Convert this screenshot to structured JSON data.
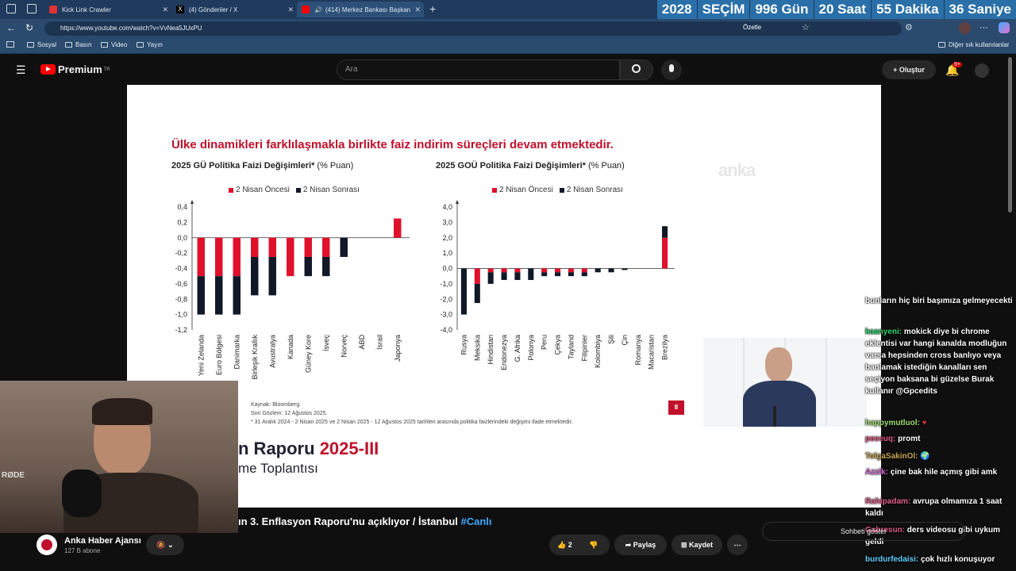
{
  "tabs": [
    {
      "label": "Kick Link Crawler",
      "color": "#d33"
    },
    {
      "label": "(4) Gönderiler / X",
      "color": "#000"
    },
    {
      "label": "(414) Merkez Bankası Başkan",
      "color": "#f00"
    }
  ],
  "countdown": [
    "2028",
    "SEÇİM",
    "996 Gün",
    "20 Saat",
    "55 Dakika",
    "36 Saniye"
  ],
  "url": "https://www.youtube.com/watch?v=VvNea5JUxPU",
  "ozetle": "Özetle",
  "bookmarks": [
    "Sosyal",
    "Basın",
    "Video",
    "Yayın"
  ],
  "other_bookmarks": "Diğer sık kullanılanlar",
  "yt": {
    "brand": "Premium",
    "brand_sup": "TR",
    "search_placeholder": "Ara",
    "create": "Oluştur",
    "notif_count": "9+"
  },
  "slide": {
    "title": "Ülke dinamikleri farklılaşmakla birlikte faiz indirim süreçleri devam etmektedir.",
    "chart1_title": "2025 GÜ Politika Faizi Değişimleri*",
    "chart1_unit": "(% Puan)",
    "chart2_title": "2025 GOÜ Politika Faizi Değişimleri*",
    "chart2_unit": "(% Puan)",
    "legend_before": "2 Nisan Öncesi",
    "legend_after": "2 Nisan Sonrası",
    "watermark": "anka",
    "source": "Kaynak: Bloomberg.",
    "observation": "Son Gözlem: 12 Ağustos 2025.",
    "footnote": "* 31 Aralık 2024 - 2 Nisan 2025 ve 2 Nisan 2025 - 12 Ağustos 2025 tarihleri arasında politika faizlerindeki değişimi ifade etmektedir.",
    "page_number": "8",
    "report_title_a": "n Raporu",
    "report_title_b": "2025-III",
    "report_sub": "me Toplantısı"
  },
  "colors": {
    "before": "#e0112b",
    "after": "#111827"
  },
  "chart_data": [
    {
      "type": "bar",
      "stacked": true,
      "title": "2025 GÜ Politika Faizi Değişimleri* (% Puan)",
      "categories": [
        "Yeni Zelanda",
        "Euro Bölgesi",
        "Danimarka",
        "Birleşik Krallık",
        "Avustralya",
        "Kanada",
        "Güney Kore",
        "İsveç",
        "Norveç",
        "ABD",
        "İsrail",
        "Japonya"
      ],
      "series": [
        {
          "name": "2 Nisan Öncesi",
          "values": [
            -0.5,
            -0.5,
            -0.5,
            -0.25,
            -0.25,
            -0.5,
            -0.25,
            -0.25,
            0,
            0,
            0,
            0.25
          ]
        },
        {
          "name": "2 Nisan Sonrası",
          "values": [
            -0.5,
            -0.5,
            -0.5,
            -0.5,
            -0.5,
            0,
            -0.25,
            -0.25,
            -0.25,
            0,
            0,
            0
          ]
        }
      ],
      "ylim": [
        -1.2,
        0.4
      ],
      "yticks": [
        "0,4",
        "0,2",
        "0,0",
        "-0,2",
        "-0,4",
        "-0,6",
        "-0,8",
        "-1,0",
        "-1,2"
      ]
    },
    {
      "type": "bar",
      "stacked": true,
      "title": "2025 GOÜ Politika Faizi Değişimleri* (% Puan)",
      "categories": [
        "Rusya",
        "Meksika",
        "Hindistan",
        "Endonezya",
        "G. Afrika",
        "Polonya",
        "Peru",
        "Çekya",
        "Tayland",
        "Filipinler",
        "Kolombiya",
        "Şili",
        "Çin",
        "Romanya",
        "Macaristan",
        "Brezilya"
      ],
      "series": [
        {
          "name": "2 Nisan Öncesi",
          "values": [
            0,
            -1.0,
            -0.25,
            -0.25,
            -0.25,
            0,
            -0.25,
            -0.25,
            -0.25,
            -0.25,
            0,
            0,
            0,
            0,
            0,
            2.0
          ]
        },
        {
          "name": "2 Nisan Sonrası",
          "values": [
            -3.0,
            -1.25,
            -0.75,
            -0.5,
            -0.5,
            -0.75,
            -0.25,
            -0.25,
            -0.25,
            -0.25,
            -0.25,
            -0.25,
            -0.1,
            0,
            0,
            0.75
          ]
        }
      ],
      "ylim": [
        -4.0,
        4.0
      ],
      "yticks": [
        "4,0",
        "3,0",
        "2,0",
        "1,0",
        "0,0",
        "-1,0",
        "-2,0",
        "-3,0",
        "-4,0"
      ]
    }
  ],
  "chat": [
    {
      "user": "",
      "text": "bunların hiç biri başımıza gelmeyecekti"
    },
    {
      "user": "kaanyeni:",
      "text": "mokick diye bi chrome eklentisi var hangi kanalda modluğun varsa hepsinden cross banlıyo veya banlamak istediğin kanalları sen seçiyon baksana bi güzelse Burak kullanır @Gpcedits"
    },
    {
      "user": "happymutluol:",
      "text": ""
    },
    {
      "user": "peeeuq:",
      "text": "promt"
    },
    {
      "user": "TolgaSakinOl:",
      "text": ""
    },
    {
      "user": "Azzik:",
      "text": "çine bak hile açmış gibi amk"
    },
    {
      "user": "Rahipadam:",
      "text": "avrupa olmamıza 1 saat kaldı"
    },
    {
      "user": "Gabresun:",
      "text": "ders videosu gibi uykum geldi"
    },
    {
      "user": "burdurfedaisi:",
      "text": "çok hızlı konuşuyor"
    }
  ],
  "video": {
    "title_part": "ın 3. Enflasyon Raporu'nu açıklıyor / İstanbul",
    "title_tag": "#Canlı",
    "channel": "Anka Haber Ajansı",
    "subscribers": "127 B abone",
    "likes": "2",
    "share": "Paylaş",
    "save": "Kaydet",
    "chat_button": "Sohbeti göster"
  }
}
